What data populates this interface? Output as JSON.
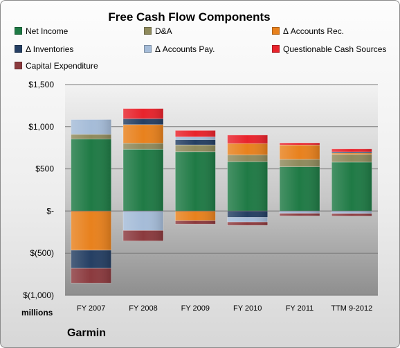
{
  "chart_data": {
    "type": "bar",
    "stacked": true,
    "title": "Free Cash Flow Components",
    "units_label": "millions",
    "source_label": "Garmin",
    "categories": [
      "FY 2007",
      "FY 2008",
      "FY 2009",
      "FY 2010",
      "FY 2011",
      "TTM 9-2012"
    ],
    "ylim": [
      -1000,
      1500
    ],
    "yticks": [
      1500,
      1000,
      500,
      0,
      -500,
      -1000
    ],
    "ytick_labels": [
      "$1,500",
      "$1,000",
      "$500",
      "$-",
      "$(500)",
      "$(1,000)"
    ],
    "legend_position": "top",
    "grid": true,
    "series": [
      {
        "name": "Net Income",
        "color": "#1f7a45",
        "values": [
          855,
          733,
          704,
          585,
          525,
          580
        ]
      },
      {
        "name": "D&A",
        "color": "#8f8a5c",
        "values": [
          55,
          72,
          80,
          81,
          88,
          92
        ]
      },
      {
        "name": "Δ Accounts Rec.",
        "color": "#e8811d",
        "values": [
          -465,
          220,
          -115,
          135,
          170,
          15
        ]
      },
      {
        "name": "Δ Inventories",
        "color": "#253f63",
        "values": [
          -215,
          70,
          62,
          -75,
          0,
          15
        ]
      },
      {
        "name": "Δ Accounts Pay.",
        "color": "#a5bcd8",
        "values": [
          175,
          -230,
          34,
          -55,
          -28,
          -30
        ]
      },
      {
        "name": "Questionable Cash Sources",
        "color": "#e8232c",
        "values": [
          0,
          120,
          75,
          100,
          25,
          35
        ]
      },
      {
        "name": "Capital Expenditure",
        "color": "#8b3a3e",
        "values": [
          -175,
          -125,
          -40,
          -40,
          -30,
          -30
        ]
      }
    ]
  }
}
